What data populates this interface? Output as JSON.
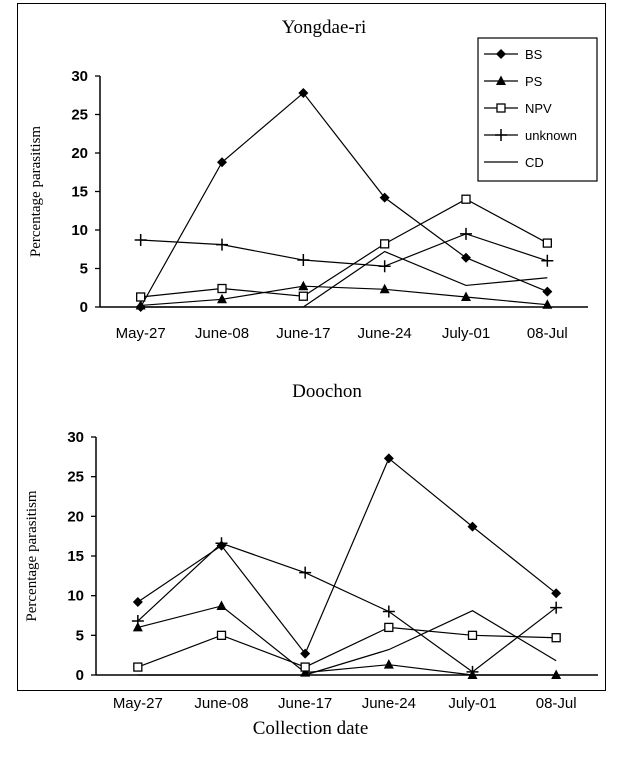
{
  "xlabel": "Collection date",
  "colors": {
    "line": "#000000",
    "background": "#ffffff"
  },
  "legend_labels": [
    "BS",
    "PS",
    "NPV",
    "unknown",
    "CD"
  ],
  "chart_data": [
    {
      "type": "line",
      "title": "Yongdae-ri",
      "ylabel": "Percentage parasitism",
      "ylim": [
        0,
        30
      ],
      "yticks": [
        0,
        5,
        10,
        15,
        20,
        25,
        30
      ],
      "categories": [
        "May-27",
        "June-08",
        "June-17",
        "June-24",
        "July-01",
        "08-Jul"
      ],
      "grid": false,
      "legend_position": "top-right",
      "series": [
        {
          "name": "BS",
          "marker": "diamond",
          "values": [
            0,
            18.8,
            27.8,
            14.2,
            6.4,
            2.0
          ]
        },
        {
          "name": "PS",
          "marker": "triangle",
          "values": [
            0.2,
            1.0,
            2.7,
            2.3,
            1.3,
            0.3
          ]
        },
        {
          "name": "NPV",
          "marker": "square-open",
          "values": [
            1.3,
            2.4,
            1.4,
            8.2,
            14.0,
            8.3
          ]
        },
        {
          "name": "unknown",
          "marker": "plus",
          "values": [
            8.7,
            8.1,
            6.1,
            5.3,
            9.5,
            6.0
          ]
        },
        {
          "name": "CD",
          "marker": "none",
          "values": [
            0,
            0,
            0,
            7.2,
            2.8,
            3.8
          ]
        }
      ]
    },
    {
      "type": "line",
      "title": "Doochon",
      "ylabel": "Percentage parasitism",
      "ylim": [
        0,
        30
      ],
      "yticks": [
        0,
        5,
        10,
        15,
        20,
        25,
        30
      ],
      "categories": [
        "May-27",
        "June-08",
        "June-17",
        "June-24",
        "July-01",
        "08-Jul"
      ],
      "grid": false,
      "series": [
        {
          "name": "BS",
          "marker": "diamond",
          "values": [
            9.2,
            16.3,
            2.7,
            27.3,
            18.7,
            10.3
          ]
        },
        {
          "name": "PS",
          "marker": "triangle",
          "values": [
            6.0,
            8.7,
            0.3,
            1.3,
            0,
            0
          ]
        },
        {
          "name": "NPV",
          "marker": "square-open",
          "values": [
            1.0,
            5.0,
            1.0,
            6.0,
            5.0,
            4.7
          ]
        },
        {
          "name": "unknown",
          "marker": "plus",
          "values": [
            6.8,
            16.6,
            12.9,
            8.0,
            0.4,
            8.5
          ]
        },
        {
          "name": "CD",
          "marker": "none",
          "values": [
            0,
            0,
            0,
            3.2,
            8.1,
            1.8
          ]
        }
      ]
    }
  ]
}
